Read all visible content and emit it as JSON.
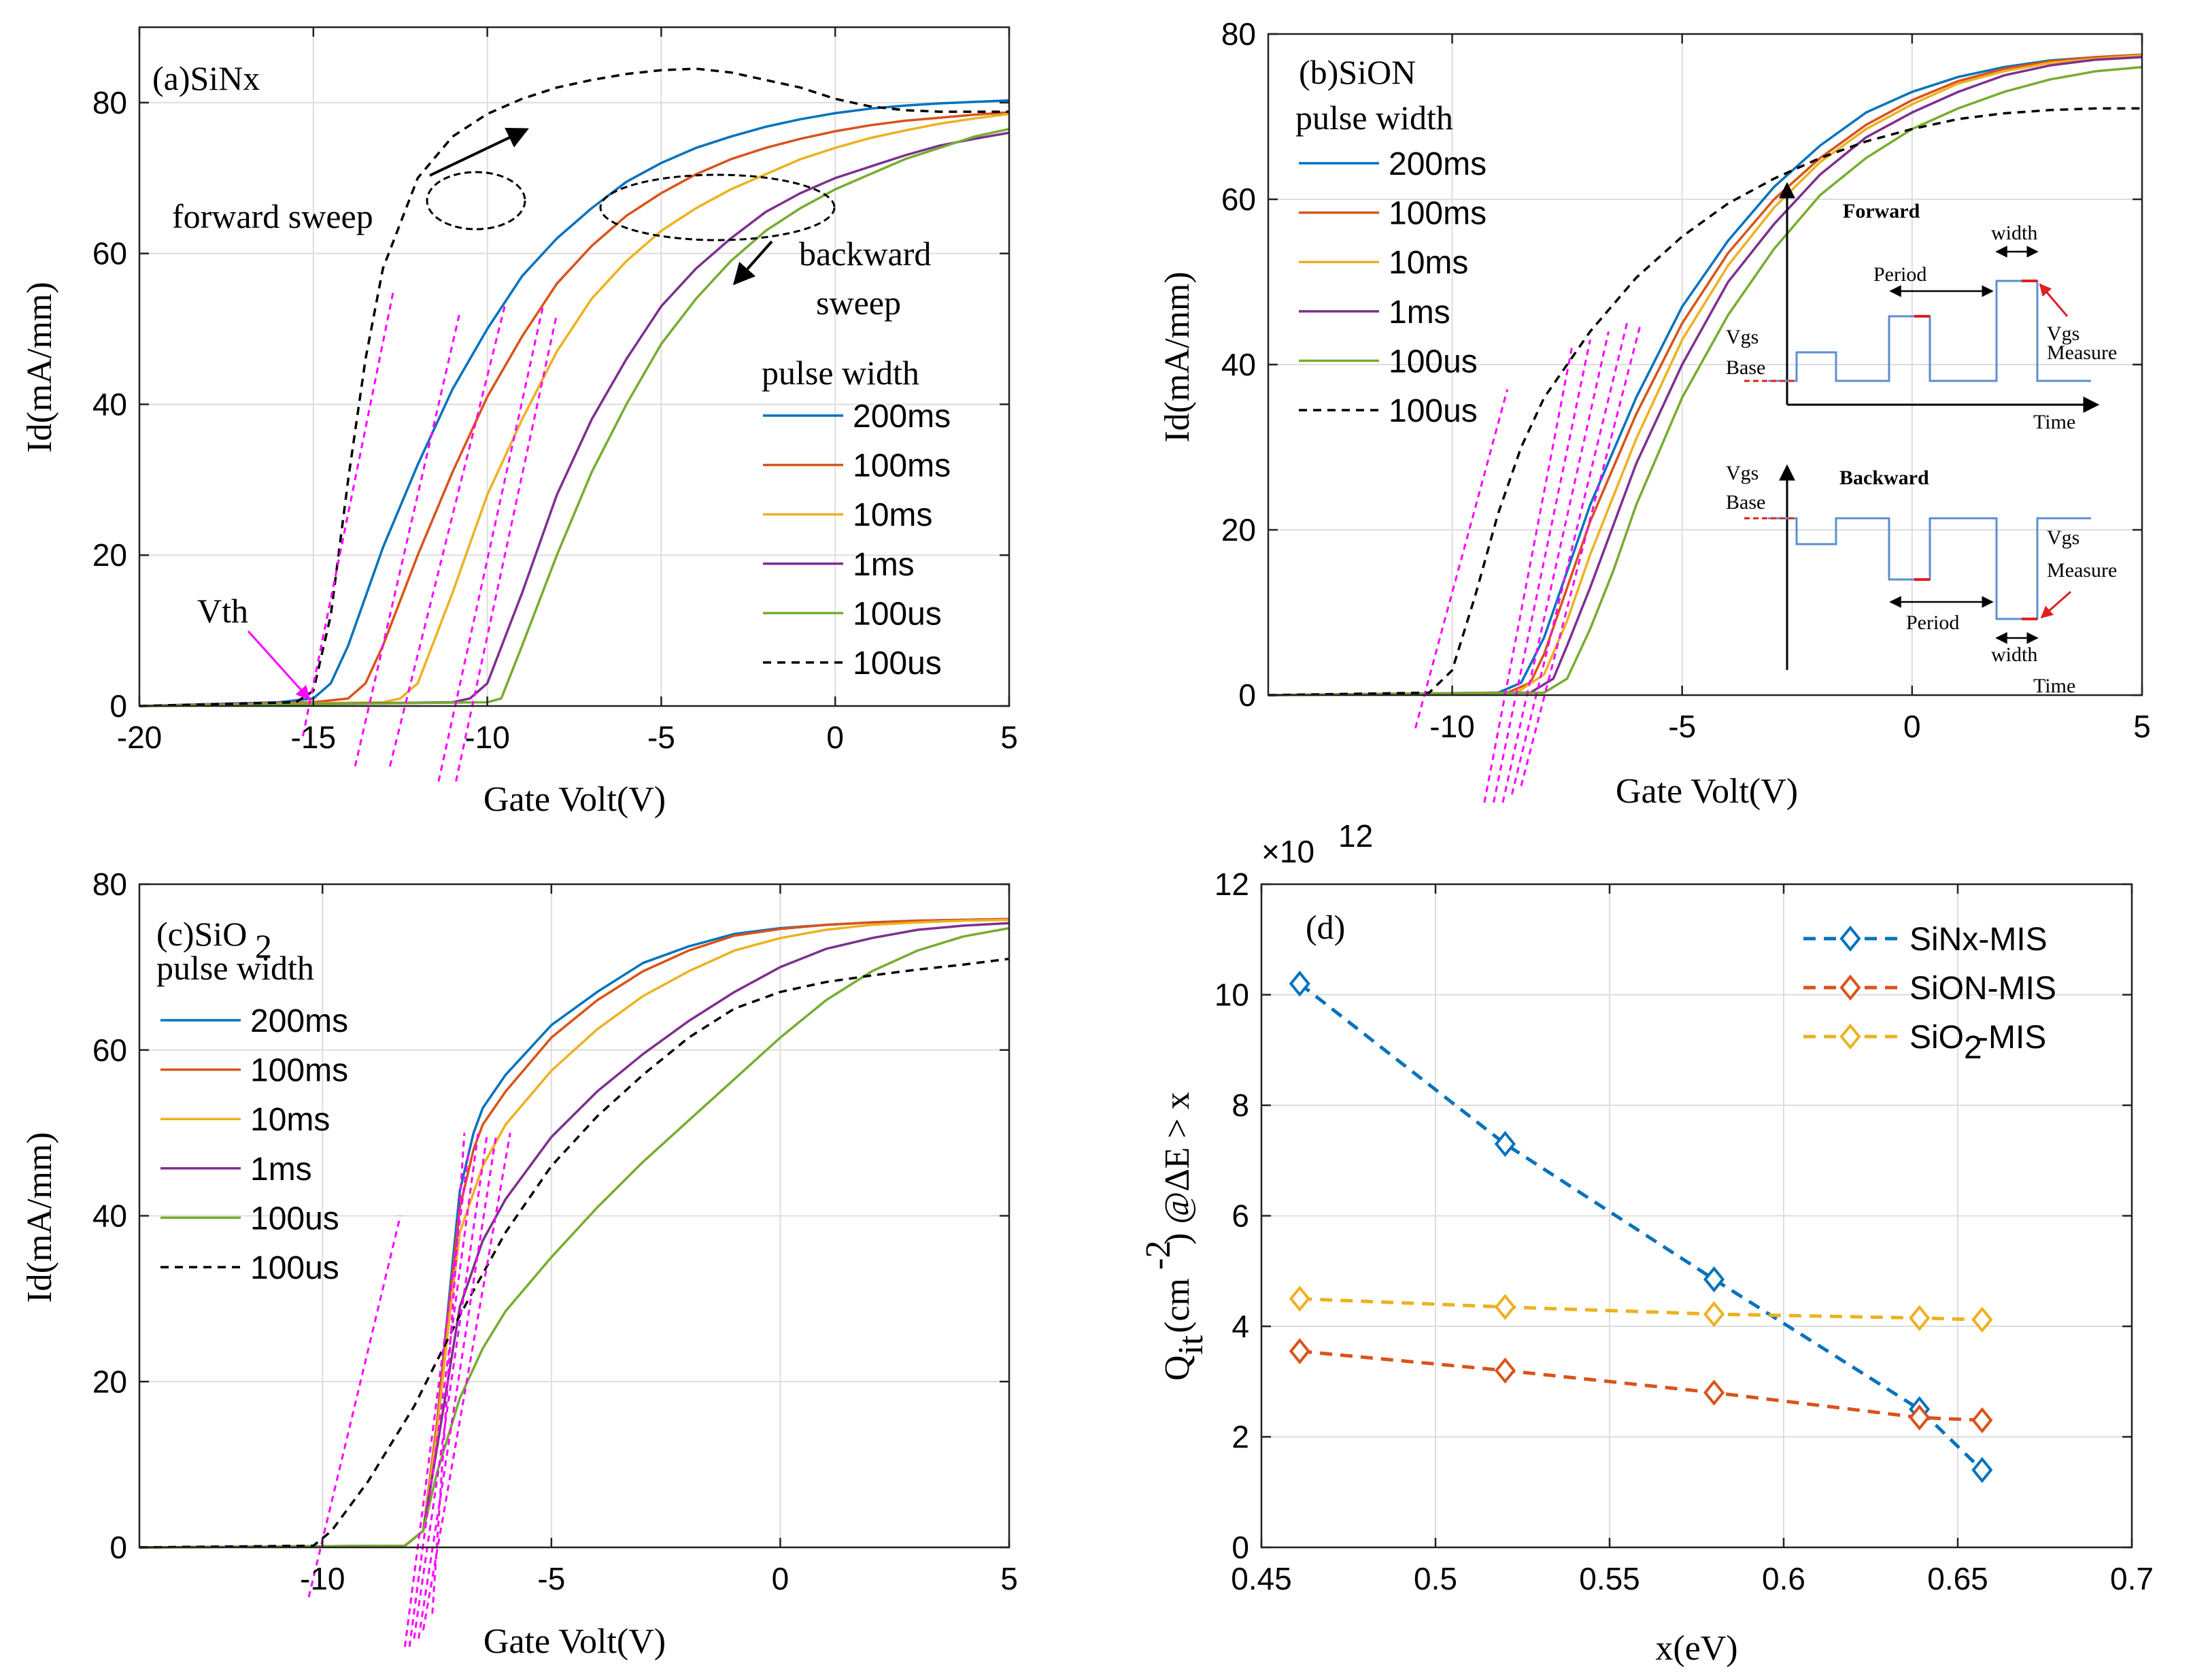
{
  "colors": {
    "c200ms": "#0072BD",
    "c100ms": "#D95319",
    "c10ms": "#EDB120",
    "c1ms": "#7E2F8E",
    "c100us": "#77AC30",
    "dashed": "#000000",
    "fit": "#FF00FF",
    "grid": "#DDDDDD"
  },
  "chart_data": [
    {
      "type": "line",
      "title": "(a)SiNx",
      "xlabel": "Gate Volt(V)",
      "ylabel": "Id(mA/mm)",
      "xlim": [
        -20,
        5
      ],
      "ylim": [
        0,
        90
      ],
      "xticks": [
        -20,
        -15,
        -10,
        -5,
        0,
        5
      ],
      "yticks": [
        0,
        20,
        40,
        60,
        80
      ],
      "legend_title": "pulse width",
      "annotations": {
        "forward": "forward sweep",
        "backward1": "backward",
        "backward2": "sweep",
        "vth": "Vth"
      },
      "series": [
        {
          "name": "200ms",
          "color_key": "c200ms",
          "style": "solid",
          "x": [
            -20,
            -16,
            -15,
            -14.5,
            -14,
            -13,
            -12,
            -11,
            -10,
            -9,
            -8,
            -7,
            -6,
            -5,
            -4,
            -3,
            -2,
            -1,
            0,
            1,
            2,
            3,
            4,
            5
          ],
          "y": [
            0,
            0.5,
            1,
            3,
            8,
            21,
            32,
            42,
            50,
            57,
            62,
            66,
            69.5,
            72,
            74,
            75.5,
            76.8,
            77.8,
            78.6,
            79.2,
            79.6,
            79.9,
            80.1,
            80.3
          ]
        },
        {
          "name": "100ms",
          "color_key": "c100ms",
          "style": "solid",
          "x": [
            -20,
            -15,
            -14,
            -13.5,
            -13,
            -12,
            -11,
            -10,
            -9,
            -8,
            -7,
            -6,
            -5,
            -4,
            -3,
            -2,
            -1,
            0,
            1,
            2,
            3,
            4,
            5
          ],
          "y": [
            0,
            0.5,
            1,
            3,
            8,
            20,
            31,
            41,
            49,
            56,
            61,
            65,
            68,
            70.5,
            72.5,
            74,
            75.2,
            76.2,
            77,
            77.6,
            78,
            78.4,
            78.7
          ]
        },
        {
          "name": "10ms",
          "color_key": "c10ms",
          "style": "solid",
          "x": [
            -20,
            -13,
            -12.5,
            -12,
            -11,
            -10,
            -9,
            -8,
            -7,
            -6,
            -5,
            -4,
            -3,
            -2,
            -1,
            0,
            1,
            2,
            3,
            4,
            5
          ],
          "y": [
            0,
            0.5,
            1,
            3,
            15,
            28,
            38,
            47,
            54,
            59,
            63,
            66,
            68.5,
            70.5,
            72.5,
            74,
            75.3,
            76.3,
            77.2,
            77.9,
            78.5
          ]
        },
        {
          "name": "1ms",
          "color_key": "c1ms",
          "style": "solid",
          "x": [
            -20,
            -11,
            -10.5,
            -10,
            -9,
            -8,
            -7,
            -6,
            -5,
            -4,
            -3,
            -2,
            -1,
            0,
            1,
            2,
            3,
            4,
            5
          ],
          "y": [
            0,
            0.5,
            1,
            3,
            15,
            28,
            38,
            46,
            53,
            58,
            62,
            65.5,
            68,
            70,
            71.5,
            73,
            74.3,
            75.2,
            76
          ]
        },
        {
          "name": "100us",
          "color_key": "c100us",
          "style": "solid",
          "x": [
            -20,
            -10,
            -9.6,
            -9,
            -8,
            -7,
            -6,
            -5,
            -4,
            -3,
            -2,
            -1,
            0,
            1,
            2,
            3,
            4,
            5
          ],
          "y": [
            0,
            0.5,
            1,
            8,
            20,
            31,
            40,
            48,
            54,
            59,
            63,
            66,
            68.5,
            70.5,
            72.5,
            74,
            75.5,
            76.5
          ]
        },
        {
          "name": "100us",
          "color_key": "dashed",
          "style": "dashed",
          "x": [
            -20,
            -15.5,
            -15,
            -14.5,
            -14,
            -13.5,
            -13,
            -12,
            -11,
            -10,
            -9,
            -8,
            -7,
            -6,
            -5,
            -4,
            -3,
            -2,
            -1,
            0,
            1,
            2,
            3,
            4,
            5
          ],
          "y": [
            0,
            0.5,
            2,
            12,
            30,
            46,
            58,
            70,
            75.5,
            78.5,
            80.5,
            82,
            83,
            83.8,
            84.3,
            84.5,
            84,
            83,
            82,
            80.5,
            79.5,
            79,
            78.8,
            78.8,
            78.8
          ]
        }
      ]
    },
    {
      "type": "line",
      "title": "(b)SiON",
      "subtitle": "pulse width",
      "xlabel": "Gate Volt(V)",
      "ylabel": "Id(mA/mm)",
      "xlim": [
        -14,
        5
      ],
      "ylim": [
        0,
        80
      ],
      "xticks": [
        -10,
        -5,
        0,
        5
      ],
      "yticks": [
        0,
        20,
        40,
        60,
        80
      ],
      "inset": {
        "forward": "Forward",
        "backward": "Backward",
        "period": "Period",
        "width": "width",
        "vgs": "Vgs",
        "base": "Base",
        "measure": "Measure",
        "time": "Time"
      },
      "series": [
        {
          "name": "200ms",
          "color_key": "c200ms",
          "style": "solid",
          "x": [
            -14,
            -9,
            -8.5,
            -8,
            -7.5,
            -7,
            -6,
            -5,
            -4,
            -3,
            -2,
            -1,
            0,
            1,
            2,
            3,
            4,
            5
          ],
          "y": [
            0,
            0.3,
            1.5,
            7,
            15,
            23,
            36,
            47,
            55,
            61.5,
            66.5,
            70.5,
            73,
            74.8,
            76,
            76.8,
            77.2,
            77.5
          ]
        },
        {
          "name": "100ms",
          "color_key": "c100ms",
          "style": "solid",
          "x": [
            -14,
            -8.8,
            -8.3,
            -8,
            -7.5,
            -7,
            -6,
            -5,
            -4,
            -3,
            -2,
            -1,
            0,
            1,
            2,
            3,
            4,
            5
          ],
          "y": [
            0,
            0.3,
            1.5,
            5,
            13,
            21,
            34,
            45,
            53.5,
            60,
            65,
            69,
            72,
            74.3,
            75.8,
            76.7,
            77.2,
            77.5
          ]
        },
        {
          "name": "10ms",
          "color_key": "c10ms",
          "style": "solid",
          "x": [
            -14,
            -8.6,
            -8,
            -7.5,
            -7,
            -6,
            -5,
            -4,
            -3,
            -2,
            -1,
            0,
            1,
            2,
            3,
            4,
            5
          ],
          "y": [
            0,
            0.3,
            2.5,
            9,
            17,
            31,
            43,
            52,
            59,
            64.5,
            68.5,
            71.5,
            74,
            75.5,
            76.5,
            77,
            77.4
          ]
        },
        {
          "name": "1ms",
          "color_key": "c1ms",
          "style": "solid",
          "x": [
            -14,
            -8.3,
            -7.8,
            -7.5,
            -7,
            -6,
            -5,
            -4,
            -3,
            -2,
            -1,
            0,
            1,
            2,
            3,
            4,
            5
          ],
          "y": [
            0,
            0.3,
            2,
            6,
            13,
            28,
            40,
            50,
            57,
            63,
            67.5,
            70.5,
            73,
            75,
            76.2,
            76.9,
            77.2
          ]
        },
        {
          "name": "100us",
          "color_key": "c100us",
          "style": "solid",
          "x": [
            -14,
            -8,
            -7.5,
            -7,
            -6.5,
            -6,
            -5,
            -4,
            -3,
            -2,
            -1,
            0,
            1,
            2,
            3,
            4,
            5
          ],
          "y": [
            0,
            0.3,
            2,
            8,
            15,
            23,
            36,
            46,
            54,
            60.5,
            65,
            68.5,
            71,
            73,
            74.5,
            75.5,
            76
          ]
        },
        {
          "name": "100us",
          "color_key": "dashed",
          "style": "dashed",
          "x": [
            -14,
            -10.5,
            -10,
            -9.5,
            -9,
            -8.5,
            -8,
            -7,
            -6,
            -5,
            -4,
            -3,
            -2,
            -1,
            0,
            1,
            2,
            3,
            4,
            5
          ],
          "y": [
            0,
            0.3,
            3,
            12,
            22,
            30,
            36,
            44,
            50.5,
            55.5,
            59.5,
            62.5,
            65,
            67,
            68.5,
            69.7,
            70.4,
            70.8,
            71,
            71
          ]
        }
      ]
    },
    {
      "type": "line",
      "title": "(c)SiO",
      "title_sub": "2",
      "subtitle": "pulse width",
      "xlabel": "Gate Volt(V)",
      "ylabel": "Id(mA/mm)",
      "xlim": [
        -14,
        5
      ],
      "ylim": [
        0,
        80
      ],
      "xticks": [
        -10,
        -5,
        0,
        5
      ],
      "yticks": [
        0,
        20,
        40,
        60,
        80
      ],
      "series": [
        {
          "name": "200ms",
          "color_key": "c200ms",
          "style": "solid",
          "x": [
            -14,
            -8.2,
            -7.8,
            -7.5,
            -7.2,
            -7,
            -6.7,
            -6.5,
            -6,
            -5,
            -4,
            -3,
            -2,
            -1,
            0,
            1,
            2,
            3,
            4,
            5
          ],
          "y": [
            0,
            0.2,
            2,
            15,
            32,
            43,
            50,
            53,
            57,
            63,
            67,
            70.5,
            72.5,
            74,
            74.7,
            75.1,
            75.4,
            75.6,
            75.7,
            75.8
          ]
        },
        {
          "name": "100ms",
          "color_key": "c100ms",
          "style": "solid",
          "x": [
            -14,
            -8.2,
            -7.8,
            -7.5,
            -7.2,
            -7,
            -6.7,
            -6.5,
            -6,
            -5,
            -4,
            -3,
            -2,
            -1,
            0,
            1,
            2,
            3,
            4,
            5
          ],
          "y": [
            0,
            0.2,
            2,
            15,
            31,
            41,
            48,
            51,
            55,
            61.5,
            66,
            69.5,
            72,
            73.8,
            74.6,
            75.1,
            75.4,
            75.6,
            75.7,
            75.8
          ]
        },
        {
          "name": "10ms",
          "color_key": "c10ms",
          "style": "solid",
          "x": [
            -14,
            -8.2,
            -7.8,
            -7.5,
            -7.2,
            -7,
            -6.5,
            -6,
            -5,
            -4,
            -3,
            -2,
            -1,
            0,
            1,
            2,
            3,
            4,
            5
          ],
          "y": [
            0,
            0.2,
            2,
            14,
            29,
            38,
            46,
            51,
            57.5,
            62.5,
            66.5,
            69.5,
            72,
            73.5,
            74.5,
            75.1,
            75.4,
            75.6,
            75.7
          ]
        },
        {
          "name": "1ms",
          "color_key": "c1ms",
          "style": "solid",
          "x": [
            -14,
            -8.2,
            -7.8,
            -7.5,
            -7,
            -6.5,
            -6,
            -5,
            -4,
            -3,
            -2,
            -1,
            0,
            1,
            2,
            3,
            4,
            5
          ],
          "y": [
            0,
            0.2,
            2,
            12,
            29,
            37,
            42,
            49.5,
            55,
            59.5,
            63.5,
            67,
            70,
            72.2,
            73.5,
            74.5,
            75,
            75.3
          ]
        },
        {
          "name": "100us",
          "color_key": "c100us",
          "style": "solid",
          "x": [
            -14,
            -8.2,
            -7.8,
            -7.5,
            -7,
            -6.5,
            -6,
            -5,
            -4,
            -3,
            -2,
            -1,
            0,
            1,
            2,
            3,
            4,
            5
          ],
          "y": [
            0,
            0.2,
            2,
            9,
            18,
            24,
            28.5,
            35,
            41,
            46.5,
            51.5,
            56.5,
            61.5,
            66,
            69.5,
            72,
            73.7,
            74.7
          ]
        },
        {
          "name": "100us",
          "color_key": "dashed",
          "style": "dashed",
          "x": [
            -14,
            -10.2,
            -9.8,
            -9,
            -8,
            -7,
            -6,
            -5,
            -4,
            -3,
            -2,
            -1,
            0,
            1,
            2,
            3,
            4,
            5
          ],
          "y": [
            0,
            0.2,
            2,
            8,
            17,
            28,
            38,
            46,
            52,
            57,
            61.5,
            65,
            67,
            68.2,
            69,
            69.7,
            70.3,
            71
          ]
        }
      ]
    },
    {
      "type": "line",
      "title": "(d)",
      "xlabel": "x(eV)",
      "ylabel_main": "Q",
      "ylabel_sub": "it",
      "ylabel_mid": "(cm",
      "ylabel_sup": "-2",
      "ylabel_tail": ") @ΔE > x",
      "exponent_prefix": "×10",
      "exponent_sup": "12",
      "xlim": [
        0.45,
        0.7
      ],
      "ylim": [
        0,
        12
      ],
      "xticks": [
        "0.45",
        "0.5",
        "0.55",
        "0.6",
        "0.65",
        "0.7"
      ],
      "yticks": [
        "0",
        "2",
        "4",
        "6",
        "8",
        "10",
        "12"
      ],
      "series": [
        {
          "name": "SiNx-MIS",
          "color_key": "c200ms",
          "marker": "diamond",
          "x": [
            0.461,
            0.52,
            0.58,
            0.639,
            0.657
          ],
          "y": [
            10.2,
            7.3,
            4.85,
            2.5,
            1.4
          ]
        },
        {
          "name": "SiON-MIS",
          "color_key": "c100ms",
          "marker": "diamond",
          "x": [
            0.461,
            0.52,
            0.58,
            0.639,
            0.657
          ],
          "y": [
            3.55,
            3.2,
            2.8,
            2.35,
            2.3
          ]
        },
        {
          "name": "SiO-MIS",
          "name_prefix": "SiO",
          "name_sub": "2",
          "name_suffix": "-MIS",
          "color_key": "c10ms",
          "marker": "diamond",
          "x": [
            0.461,
            0.52,
            0.58,
            0.639,
            0.657
          ],
          "y": [
            4.5,
            4.35,
            4.22,
            4.15,
            4.12
          ]
        }
      ]
    }
  ]
}
